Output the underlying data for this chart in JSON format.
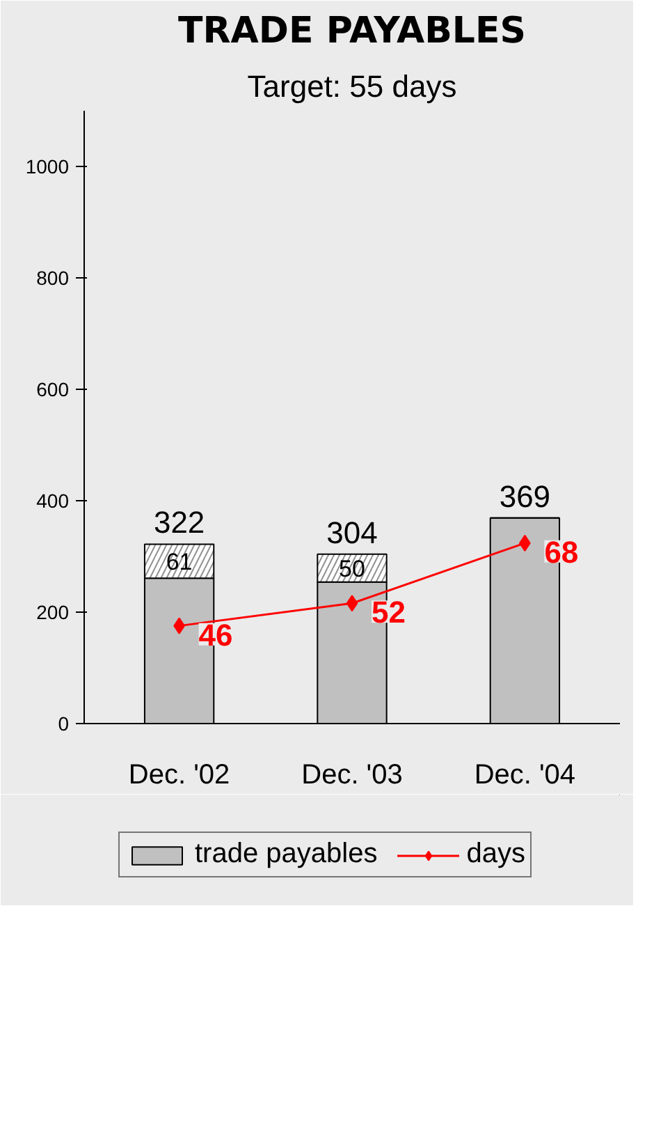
{
  "chart_data": {
    "type": "bar",
    "title": "TRADE PAYABLES",
    "subtitle": "Target: 55 days",
    "categories": [
      "Dec. '02",
      "Dec. '03",
      "Dec. '04"
    ],
    "stacked": true,
    "series": [
      {
        "name": "trade payables",
        "color": "#c0c0c0",
        "values": [
          261,
          254,
          369
        ]
      },
      {
        "color": "#ffffff",
        "values": [
          61,
          50,
          null
        ],
        "value_labels": [
          "61",
          "50",
          null
        ]
      },
      {
        "name": "days",
        "type": "line",
        "axis": "y2",
        "color": "#ff0000",
        "values": [
          46,
          52,
          68
        ],
        "marker": "diamond",
        "data_labels": true
      }
    ],
    "totals": [
      "322",
      "304",
      "369"
    ],
    "ylim": [
      0,
      1100
    ],
    "yticks": [
      0,
      200,
      400,
      600,
      800,
      1000
    ],
    "y2lim": [
      20,
      183
    ],
    "grid": false,
    "legend": "bottom"
  }
}
